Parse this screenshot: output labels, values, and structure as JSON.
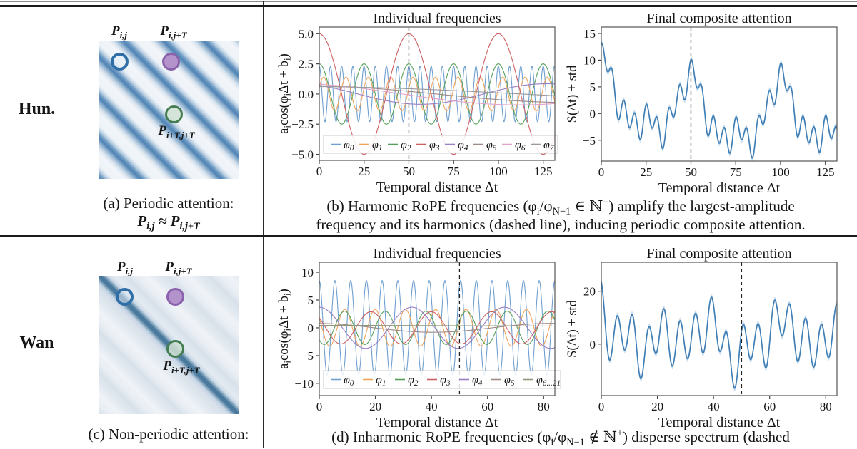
{
  "figure": {
    "rows": [
      {
        "id": "hun",
        "row_label": "Hun.",
        "heatmap": {
          "style": "periodic-diagonal-stripes",
          "stripe_color": "#4f83b4",
          "label_top_left": "P_{i,j}",
          "label_top_right": "P_{i,j+T}",
          "label_inner": "P_{i+T,j+T}",
          "circle_colors": {
            "open_blue": "#2f6ea6",
            "filled_purple": "#b492cb",
            "filled_green": "#cfe0d2"
          }
        },
        "panel_caption": {
          "line1": "(a) Periodic attention:",
          "line2": "P_{i,j} ≈ P_{i,j+T}"
        },
        "wide_caption": {
          "line1": "(b) Harmonic RoPE frequencies (φ_{i}/φ_{N−1} ∈ ℕ^{+}) amplify the largest-amplitude",
          "line2": "frequency and its harmonics (dashed line), inducing periodic composite attention."
        }
      },
      {
        "id": "wan",
        "row_label": "Wan",
        "heatmap": {
          "style": "single-main-diagonal",
          "stripe_color": "#49799c",
          "label_top_left": "P_{i,j}",
          "label_top_right": "P_{i,j+T}",
          "label_inner": "P_{i+T,j+T}",
          "circle_colors": {
            "open_blue": "#2f6ea6",
            "filled_purple": "#b492cb",
            "filled_green": "#cfe0d2"
          }
        },
        "panel_caption": {
          "line1": "(c) Non-periodic attention:"
        },
        "wide_caption": {
          "line1": "(d) Inharmonic RoPE frequencies (φ_{i}/φ_{N−1} ∉ ℕ^{+}) disperse spectrum (dashed"
        }
      }
    ]
  },
  "chart_data": [
    {
      "id": "hun_freq",
      "type": "line",
      "title": "Individual frequencies",
      "xlabel": "Temporal distance Δt",
      "ylabel": "a_{i}cos(φ_{i}Δt + b_{i})",
      "xlim": [
        0,
        131.5
      ],
      "ylim": [
        -5.5,
        5.55
      ],
      "xticks": [
        0,
        25,
        50,
        75,
        100,
        125
      ],
      "xtick_labels": [
        "0",
        "25",
        "50",
        "75",
        "100",
        "125"
      ],
      "yticks": [
        5.0,
        2.5,
        0.0,
        -2.5,
        -5.0
      ],
      "ytick_labels": [
        "5.0",
        "2.5",
        "0.0",
        "−2.5",
        "−5.0"
      ],
      "dashed_vline_x": 50,
      "grid": false,
      "legend_position": "lower center",
      "series": [
        {
          "name": "φ_{0}",
          "color": "#6f9fd0",
          "amplitude": 2.3,
          "period": 6.25,
          "phase": 0
        },
        {
          "name": "φ_{1}",
          "color": "#f0a45c",
          "amplitude": 1.4,
          "period": 12.5,
          "phase": -1.2
        },
        {
          "name": "φ_{2}",
          "color": "#57a05c",
          "amplitude": 2.5,
          "period": 25,
          "phase": 0
        },
        {
          "name": "φ_{3}",
          "color": "#cc5f62",
          "amplitude": 5.0,
          "period": 50,
          "phase": 0
        },
        {
          "name": "φ_{4}",
          "color": "#9a7fc4",
          "amplitude": 0.85,
          "period": 140,
          "phase": 0.6
        },
        {
          "name": "φ_{5}",
          "color": "#a08a87",
          "amplitude": 0.7,
          "period": 300,
          "phase": 0.2
        },
        {
          "name": "φ_{6}",
          "color": "#e3a3cd",
          "amplitude": 0.9,
          "period": 260,
          "phase": 0.45
        },
        {
          "name": "φ_{7}",
          "color": "#9a9a9a",
          "amplitude": 0.62,
          "period": 500,
          "phase": 0.15
        }
      ]
    },
    {
      "id": "hun_comp",
      "type": "line-with-band",
      "title": "Final composite attention",
      "xlabel": "Temporal distance Δt",
      "ylabel": "S̄(Δt) ± std",
      "xlim": [
        0,
        131.5
      ],
      "ylim": [
        -8.9,
        16.2
      ],
      "xticks": [
        0,
        25,
        50,
        75,
        100,
        125
      ],
      "xtick_labels": [
        "0",
        "25",
        "50",
        "75",
        "100",
        "125"
      ],
      "yticks": [
        15,
        10,
        5,
        0,
        -5
      ],
      "ytick_labels": [
        "15",
        "10",
        "5",
        "0",
        "−5"
      ],
      "dashed_vline_x": 50,
      "grid": false,
      "line_color": "#3f7fb5",
      "band_color": "#aecbe6",
      "band_std": 0.55,
      "composite_of": "hun_freq",
      "extra_components": [],
      "notable_values": {
        "value_at_0": 14,
        "peak_at_50": 11.5,
        "peak_at_100": 12,
        "typical_min": -6
      }
    },
    {
      "id": "wan_freq",
      "type": "line",
      "title": "Individual frequencies",
      "xlabel": "Temporal distance Δt",
      "ylabel": "a_{i}cos(φ_{i}Δt + b_{i})",
      "xlim": [
        0,
        84
      ],
      "ylim": [
        -12.2,
        11.8
      ],
      "xticks": [
        0,
        20,
        40,
        60,
        80
      ],
      "xtick_labels": [
        "0",
        "20",
        "40",
        "60",
        "80"
      ],
      "yticks": [
        10,
        5,
        0,
        -5,
        -10
      ],
      "ytick_labels": [
        "10",
        "5",
        "0",
        "−5",
        "−10"
      ],
      "dashed_vline_x": 50,
      "grid": false,
      "legend_position": "lower center",
      "series": [
        {
          "name": "φ_{0}",
          "color": "#6f9fd0",
          "amplitude": 8.5,
          "period": 5.6,
          "phase": 0
        },
        {
          "name": "φ_{1}",
          "color": "#f0a45c",
          "amplitude": 3.3,
          "period": 10.8,
          "phase": 1.0
        },
        {
          "name": "φ_{2}",
          "color": "#57a05c",
          "amplitude": 3.0,
          "period": 14.5,
          "phase": 2.38
        },
        {
          "name": "φ_{3}",
          "color": "#cc5f62",
          "amplitude": 2.9,
          "period": 21.5,
          "phase": 0.9
        },
        {
          "name": "φ_{4}",
          "color": "#9a7fc4",
          "amplitude": 3.7,
          "period": 33,
          "phase": 0
        },
        {
          "name": "φ_{5}",
          "color": "#a08a87",
          "amplitude": 0.8,
          "period": 84,
          "phase": 0.1
        },
        {
          "name": "φ_{6...21}",
          "color": "#8f9779",
          "amplitude": 0.45,
          "period": 900,
          "phase": 0.2
        }
      ]
    },
    {
      "id": "wan_comp",
      "type": "line-with-band",
      "title": "Final composite attention",
      "xlabel": "Temporal distance Δt",
      "ylabel": "S̄(Δt) ± std",
      "xlim": [
        0,
        84
      ],
      "ylim": [
        -19.5,
        31
      ],
      "xticks": [
        0,
        20,
        40,
        60,
        80
      ],
      "xtick_labels": [
        "0",
        "20",
        "40",
        "60",
        "80"
      ],
      "yticks": [
        20,
        0
      ],
      "ytick_labels": [
        "20",
        "0"
      ],
      "dashed_vline_x": 50,
      "grid": false,
      "line_color": "#3f7fb5",
      "band_color": "#aecbe6",
      "band_std": 1.2,
      "composite_of": "wan_freq",
      "extra_components": [
        {
          "type": "decay",
          "amplitude": 7,
          "tau": 2.5
        },
        {
          "type": "const",
          "amplitude": 2
        }
      ],
      "notable_values": {
        "value_at_0": 27.5,
        "oscillation_period": 5.6,
        "typical_peaks": 14,
        "typical_min": -14
      }
    }
  ]
}
